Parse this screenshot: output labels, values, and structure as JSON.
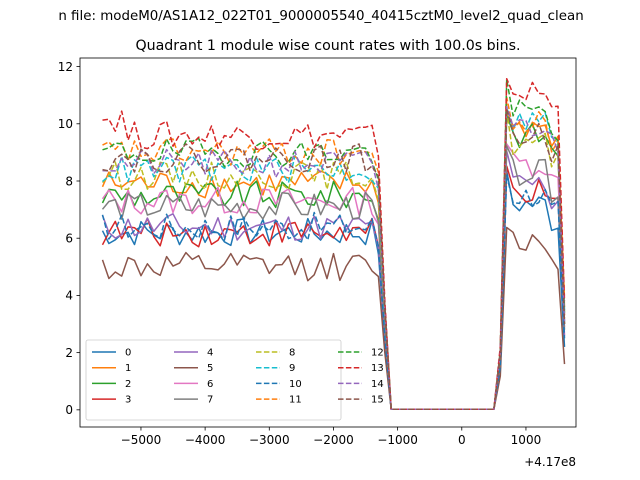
{
  "chart_data": {
    "type": "line",
    "suptitle": "n file: modeM0/AS1A12_022T01_9000005540_40415cztM0_level2_quad_clean",
    "title": "Quadrant 1 module wise count rates with 100.0s bins.",
    "xlabel": "",
    "ylabel": "",
    "offset_text": "+4.17e8",
    "xlim": [
      -5950,
      1780
    ],
    "ylim": [
      -0.6,
      12.3
    ],
    "xticks": [
      -5000,
      -4000,
      -3000,
      -2000,
      -1000,
      0,
      1000
    ],
    "xtick_labels": [
      "−5000",
      "−4000",
      "−3000",
      "−2000",
      "−1000",
      "0",
      "1000"
    ],
    "yticks": [
      0,
      2,
      4,
      6,
      8,
      10,
      12
    ],
    "ytick_labels": [
      "0",
      "2",
      "4",
      "6",
      "8",
      "10",
      "12"
    ],
    "grid": false,
    "legend_position": "lower-left",
    "legend_columns": 4,
    "segments": [
      {
        "start": -5600,
        "end": -1400,
        "step": 100
      },
      {
        "start": -1300,
        "end": -1000,
        "step": 100,
        "kind": "drop"
      },
      {
        "start": -1200,
        "end": 500,
        "step": 100,
        "kind": "gap"
      },
      {
        "start": 600,
        "end": 700,
        "step": 100,
        "kind": "rise"
      },
      {
        "start": 700,
        "end": 1600,
        "step": 100
      }
    ],
    "series": [
      {
        "name": "0",
        "color": "#1f77b4",
        "dash": "solid",
        "level_a": 6.2,
        "level_b": 7.2,
        "end_value": 2.2
      },
      {
        "name": "1",
        "color": "#ff7f0e",
        "dash": "solid",
        "level_a": 7.9,
        "level_b": 9.9,
        "end_value": 3.6
      },
      {
        "name": "2",
        "color": "#2ca02c",
        "dash": "solid",
        "level_a": 7.5,
        "level_b": 9.6,
        "end_value": 3.0
      },
      {
        "name": "3",
        "color": "#d62728",
        "dash": "solid",
        "level_a": 6.2,
        "level_b": 7.6,
        "end_value": 3.3
      },
      {
        "name": "4",
        "color": "#9467bd",
        "dash": "solid",
        "level_a": 6.4,
        "level_b": 7.9,
        "end_value": 2.6
      },
      {
        "name": "5",
        "color": "#8c564b",
        "dash": "solid",
        "level_a": 5.0,
        "level_b": 5.9,
        "end_value": 1.6
      },
      {
        "name": "6",
        "color": "#e377c2",
        "dash": "solid",
        "level_a": 7.3,
        "level_b": 8.6,
        "end_value": 2.9
      },
      {
        "name": "7",
        "color": "#7f7f7f",
        "dash": "solid",
        "level_a": 7.1,
        "level_b": 8.3,
        "end_value": 2.8
      },
      {
        "name": "8",
        "color": "#bcbd22",
        "dash": "dashed",
        "level_a": 8.2,
        "level_b": 9.3,
        "end_value": 3.2
      },
      {
        "name": "9",
        "color": "#17becf",
        "dash": "dashed",
        "level_a": 8.4,
        "level_b": 10.1,
        "end_value": 3.5
      },
      {
        "name": "10",
        "color": "#1f77b4",
        "dash": "dashed",
        "level_a": 6.4,
        "level_b": 7.5,
        "end_value": 2.5
      },
      {
        "name": "11",
        "color": "#ff7f0e",
        "dash": "dashed",
        "level_a": 9.0,
        "level_b": 10.0,
        "end_value": 3.9
      },
      {
        "name": "12",
        "color": "#2ca02c",
        "dash": "dashed",
        "level_a": 9.0,
        "level_b": 10.4,
        "end_value": 3.4
      },
      {
        "name": "13",
        "color": "#d62728",
        "dash": "dashed",
        "level_a": 9.6,
        "level_b": 11.1,
        "end_value": 3.8
      },
      {
        "name": "14",
        "color": "#9467bd",
        "dash": "dashed",
        "level_a": 8.6,
        "level_b": 9.9,
        "end_value": 3.1
      },
      {
        "name": "15",
        "color": "#8c564b",
        "dash": "dashed",
        "level_a": 8.8,
        "level_b": 9.6,
        "end_value": 3.0
      }
    ]
  }
}
